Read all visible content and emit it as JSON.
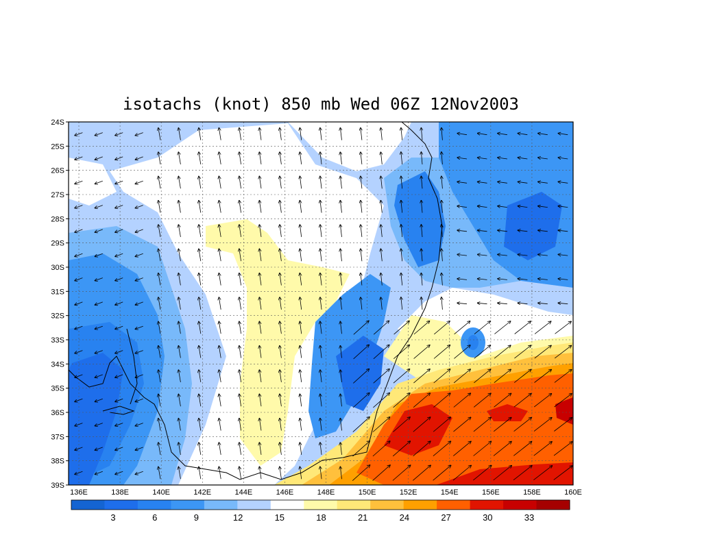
{
  "title": "isotachs (knot) 850 mb Wed 06Z 12Nov2003",
  "lat_labels": [
    "24S",
    "25S",
    "26S",
    "27S",
    "28S",
    "29S",
    "30S",
    "31S",
    "32S",
    "33S",
    "34S",
    "35S",
    "36S",
    "37S",
    "38S",
    "39S"
  ],
  "lon_labels": [
    "136E",
    "138E",
    "140E",
    "142E",
    "144E",
    "146E",
    "148E",
    "150E",
    "152E",
    "154E",
    "156E",
    "158E",
    "160E"
  ],
  "colorbar": {
    "labels": [
      "3",
      "6",
      "9",
      "12",
      "15",
      "18",
      "21",
      "24",
      "27",
      "30",
      "33"
    ],
    "colors": [
      "#1464d2",
      "#1e6eeb",
      "#2882f0",
      "#3c96f5",
      "#78b9fa",
      "#b4d2ff",
      "#ffffff",
      "#fffaaa",
      "#ffe878",
      "#ffc03c",
      "#ffa000",
      "#ff6000",
      "#e11400",
      "#c80000",
      "#a50000"
    ]
  },
  "map": {
    "extent_lon": [
      135.5,
      160
    ],
    "extent_lat": [
      -39,
      -24
    ],
    "grid": "dotted"
  }
}
